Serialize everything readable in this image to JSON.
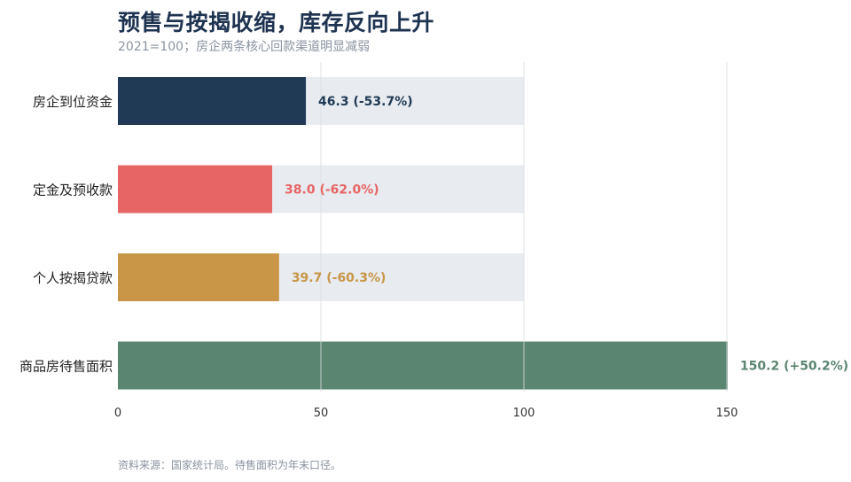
{
  "header": {
    "title": "预售与按揭收缩，库存反向上升",
    "subtitle": "2021=100；房企两条核心回款渠道明显减弱"
  },
  "footer": {
    "source": "资料来源：国家统计局。待售面积为年末口径。"
  },
  "colors": {
    "reference_bar": "#e8ebef",
    "grid": "#d9dde2",
    "axis_text": "#333333",
    "category_text": "#222222"
  },
  "chart_data": {
    "type": "bar",
    "orientation": "horizontal",
    "reference_value": 100,
    "categories": [
      "房企到位资金",
      "定金及预收款",
      "个人按揭贷款",
      "商品房待售面积"
    ],
    "values": [
      46.3,
      38.0,
      39.7,
      150.2
    ],
    "value_labels": [
      "46.3  (-53.7%)",
      "38.0  (-62.0%)",
      "39.7  (-60.3%)",
      "150.2  (+50.2%)"
    ],
    "bar_colors": [
      "#203a55",
      "#e86565",
      "#c89646",
      "#5a8570"
    ],
    "xlim": [
      0,
      150
    ],
    "xticks": [
      0,
      50,
      100,
      150
    ],
    "grid": true
  }
}
